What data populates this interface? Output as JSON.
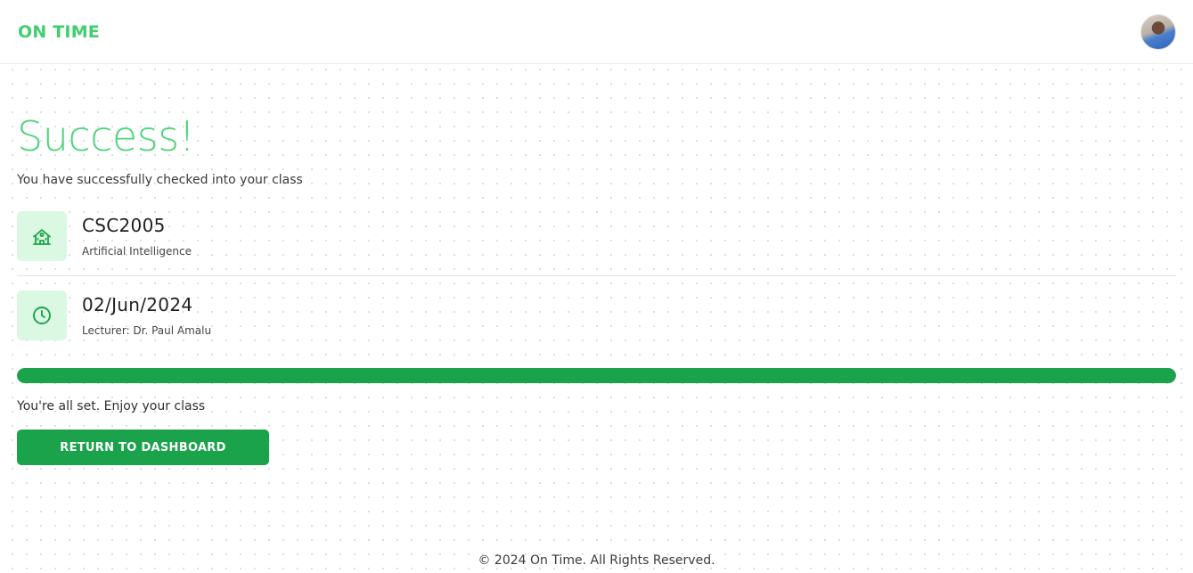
{
  "header": {
    "brand": "ON TIME",
    "avatar_icon": "user-avatar"
  },
  "main": {
    "title": "Success!",
    "subtitle": "You have successfully checked into your class",
    "course": {
      "icon": "school-building-icon",
      "code": "CSC2005",
      "name": "Artificial Intelligence"
    },
    "session": {
      "icon": "clock-icon",
      "date": "02/Jun/2024",
      "lecturer": "Lecturer: Dr. Paul Amalu"
    },
    "progress_percent": 100,
    "status_text": "You're all set. Enjoy your class",
    "return_button_label": "RETURN TO DASHBOARD"
  },
  "footer": {
    "copyright": "© 2024 On Time. All Rights Reserved."
  },
  "colors": {
    "brand": "#3fcf6e",
    "accent": "#1aa34a",
    "icon_bg": "#daf8e2"
  }
}
